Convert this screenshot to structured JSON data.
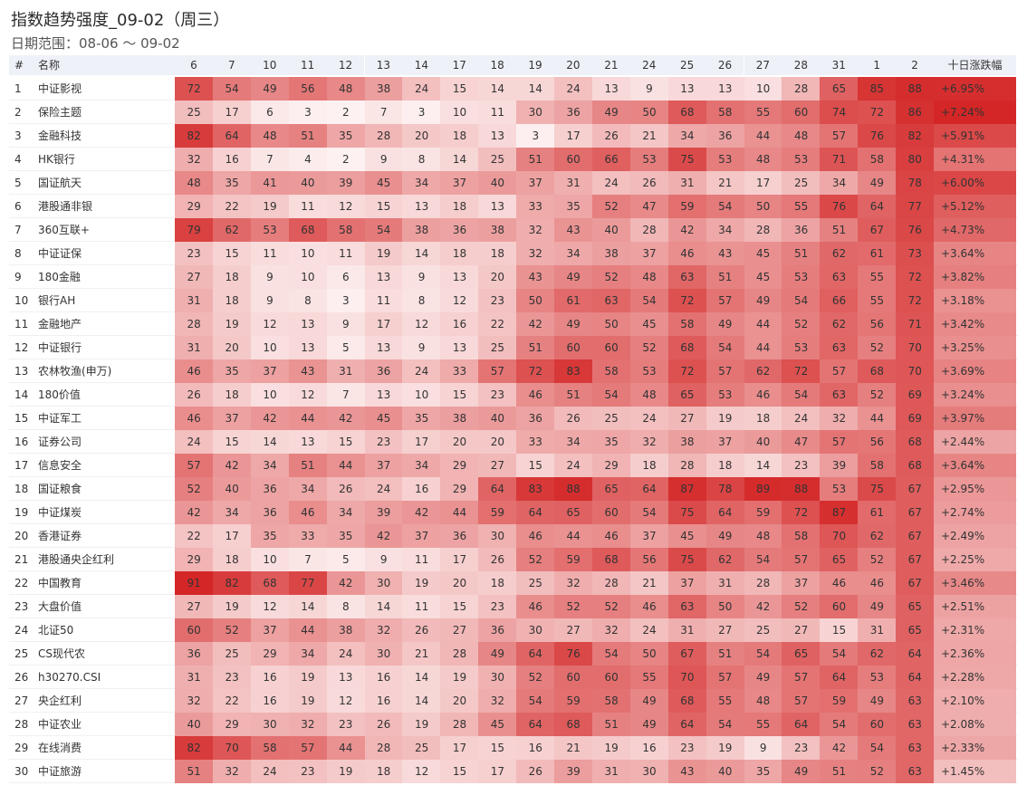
{
  "title": "指数趋势强度_09-02（周三）",
  "subtitle": "日期范围：08-06 ～ 09-02",
  "table": {
    "header": [
      "#",
      "名称",
      "6",
      "7",
      "10",
      "11",
      "12",
      "13",
      "14",
      "17",
      "18",
      "19",
      "20",
      "21",
      "24",
      "25",
      "26",
      "27",
      "28",
      "31",
      "1",
      "2",
      "十日涨跌幅"
    ],
    "colors": {
      "low": "#fdf1f1",
      "high": "#d42626"
    },
    "rows": [
      {
        "rank": 1,
        "name": "中证影视",
        "scores": [
          72,
          54,
          49,
          56,
          48,
          38,
          24,
          15,
          14,
          14,
          24,
          13,
          9,
          13,
          13,
          10,
          28,
          65,
          85,
          88
        ],
        "change": {
          "value": 6.95,
          "label": "+6.95%"
        }
      },
      {
        "rank": 2,
        "name": "保险主题",
        "scores": [
          25,
          17,
          6,
          3,
          2,
          7,
          3,
          10,
          11,
          30,
          36,
          49,
          50,
          68,
          58,
          55,
          60,
          74,
          72,
          86
        ],
        "change": {
          "value": 7.24,
          "label": "+7.24%"
        }
      },
      {
        "rank": 3,
        "name": "金融科技",
        "scores": [
          82,
          64,
          48,
          51,
          35,
          28,
          20,
          18,
          13,
          3,
          17,
          26,
          21,
          34,
          36,
          44,
          48,
          57,
          76,
          82
        ],
        "change": {
          "value": 5.91,
          "label": "+5.91%"
        }
      },
      {
        "rank": 4,
        "name": "HK银行",
        "scores": [
          32,
          16,
          7,
          4,
          2,
          9,
          8,
          14,
          25,
          51,
          60,
          66,
          53,
          75,
          53,
          48,
          53,
          71,
          58,
          80
        ],
        "change": {
          "value": 4.31,
          "label": "+4.31%"
        }
      },
      {
        "rank": 5,
        "name": "国证航天",
        "scores": [
          48,
          35,
          41,
          40,
          39,
          45,
          34,
          37,
          40,
          37,
          31,
          24,
          26,
          31,
          21,
          17,
          25,
          34,
          49,
          78
        ],
        "change": {
          "value": 6.0,
          "label": "+6.00%"
        }
      },
      {
        "rank": 6,
        "name": "港股通非银",
        "scores": [
          29,
          22,
          19,
          11,
          12,
          15,
          13,
          18,
          13,
          33,
          35,
          52,
          47,
          59,
          54,
          50,
          55,
          76,
          64,
          77
        ],
        "change": {
          "value": 5.12,
          "label": "+5.12%"
        }
      },
      {
        "rank": 7,
        "name": "360互联+",
        "scores": [
          79,
          62,
          53,
          68,
          58,
          54,
          38,
          36,
          38,
          32,
          43,
          40,
          28,
          42,
          34,
          28,
          36,
          51,
          67,
          76
        ],
        "change": {
          "value": 4.73,
          "label": "+4.73%"
        }
      },
      {
        "rank": 8,
        "name": "中证证保",
        "scores": [
          23,
          15,
          11,
          10,
          11,
          19,
          14,
          18,
          18,
          32,
          34,
          38,
          37,
          46,
          43,
          45,
          51,
          62,
          61,
          73
        ],
        "change": {
          "value": 3.64,
          "label": "+3.64%"
        }
      },
      {
        "rank": 9,
        "name": "180金融",
        "scores": [
          27,
          18,
          9,
          10,
          6,
          13,
          9,
          13,
          20,
          43,
          49,
          52,
          48,
          63,
          51,
          45,
          53,
          63,
          55,
          72
        ],
        "change": {
          "value": 3.82,
          "label": "+3.82%"
        }
      },
      {
        "rank": 10,
        "name": "银行AH",
        "scores": [
          31,
          18,
          9,
          8,
          3,
          11,
          8,
          12,
          23,
          50,
          61,
          63,
          54,
          72,
          57,
          49,
          54,
          66,
          55,
          72
        ],
        "change": {
          "value": 3.18,
          "label": "+3.18%"
        }
      },
      {
        "rank": 11,
        "name": "金融地产",
        "scores": [
          28,
          19,
          12,
          13,
          9,
          17,
          12,
          16,
          22,
          42,
          49,
          50,
          45,
          58,
          49,
          44,
          52,
          62,
          56,
          71
        ],
        "change": {
          "value": 3.42,
          "label": "+3.42%"
        }
      },
      {
        "rank": 12,
        "name": "中证银行",
        "scores": [
          31,
          20,
          10,
          13,
          5,
          13,
          9,
          13,
          25,
          51,
          60,
          60,
          52,
          68,
          54,
          44,
          53,
          63,
          52,
          70
        ],
        "change": {
          "value": 3.25,
          "label": "+3.25%"
        }
      },
      {
        "rank": 13,
        "name": "农林牧渔(申万)",
        "scores": [
          46,
          35,
          37,
          43,
          31,
          36,
          24,
          33,
          57,
          72,
          83,
          58,
          53,
          72,
          57,
          62,
          72,
          57,
          68,
          70
        ],
        "change": {
          "value": 3.69,
          "label": "+3.69%"
        }
      },
      {
        "rank": 14,
        "name": "180价值",
        "scores": [
          26,
          18,
          10,
          12,
          7,
          13,
          10,
          15,
          23,
          46,
          51,
          54,
          48,
          65,
          53,
          46,
          54,
          63,
          52,
          69
        ],
        "change": {
          "value": 3.24,
          "label": "+3.24%"
        }
      },
      {
        "rank": 15,
        "name": "中证军工",
        "scores": [
          46,
          37,
          42,
          44,
          42,
          45,
          35,
          38,
          40,
          36,
          26,
          25,
          24,
          27,
          19,
          18,
          24,
          32,
          44,
          69
        ],
        "change": {
          "value": 3.97,
          "label": "+3.97%"
        }
      },
      {
        "rank": 16,
        "name": "证券公司",
        "scores": [
          24,
          15,
          14,
          13,
          15,
          23,
          17,
          20,
          20,
          33,
          34,
          35,
          32,
          38,
          37,
          40,
          47,
          57,
          56,
          68
        ],
        "change": {
          "value": 2.44,
          "label": "+2.44%"
        }
      },
      {
        "rank": 17,
        "name": "信息安全",
        "scores": [
          57,
          42,
          34,
          51,
          44,
          37,
          34,
          29,
          27,
          15,
          24,
          29,
          18,
          28,
          18,
          14,
          23,
          39,
          58,
          68
        ],
        "change": {
          "value": 3.64,
          "label": "+3.64%"
        }
      },
      {
        "rank": 18,
        "name": "国证粮食",
        "scores": [
          52,
          40,
          36,
          34,
          26,
          24,
          16,
          29,
          64,
          83,
          88,
          65,
          64,
          87,
          78,
          89,
          88,
          53,
          75,
          67
        ],
        "change": {
          "value": 2.95,
          "label": "+2.95%"
        }
      },
      {
        "rank": 19,
        "name": "中证煤炭",
        "scores": [
          42,
          34,
          36,
          46,
          34,
          39,
          42,
          44,
          59,
          64,
          65,
          60,
          54,
          75,
          64,
          59,
          72,
          87,
          61,
          67
        ],
        "change": {
          "value": 2.74,
          "label": "+2.74%"
        }
      },
      {
        "rank": 20,
        "name": "香港证券",
        "scores": [
          22,
          17,
          35,
          33,
          35,
          42,
          37,
          36,
          30,
          46,
          44,
          46,
          37,
          45,
          49,
          48,
          58,
          70,
          62,
          67
        ],
        "change": {
          "value": 2.49,
          "label": "+2.49%"
        }
      },
      {
        "rank": 21,
        "name": "港股通央企红利",
        "scores": [
          29,
          18,
          10,
          7,
          5,
          9,
          11,
          17,
          26,
          52,
          59,
          68,
          56,
          75,
          62,
          54,
          57,
          65,
          52,
          67
        ],
        "change": {
          "value": 2.25,
          "label": "+2.25%"
        }
      },
      {
        "rank": 22,
        "name": "中国教育",
        "scores": [
          91,
          82,
          68,
          77,
          42,
          30,
          19,
          20,
          18,
          25,
          32,
          28,
          21,
          37,
          31,
          28,
          37,
          46,
          46,
          67
        ],
        "change": {
          "value": 3.46,
          "label": "+3.46%"
        }
      },
      {
        "rank": 23,
        "name": "大盘价值",
        "scores": [
          27,
          19,
          12,
          14,
          8,
          14,
          11,
          15,
          23,
          46,
          52,
          52,
          46,
          63,
          50,
          42,
          52,
          60,
          49,
          65
        ],
        "change": {
          "value": 2.51,
          "label": "+2.51%"
        }
      },
      {
        "rank": 24,
        "name": "北证50",
        "scores": [
          60,
          52,
          37,
          44,
          38,
          32,
          26,
          27,
          36,
          30,
          27,
          32,
          24,
          31,
          27,
          25,
          27,
          15,
          31,
          65
        ],
        "change": {
          "value": 2.31,
          "label": "+2.31%"
        }
      },
      {
        "rank": 25,
        "name": "CS现代农",
        "scores": [
          36,
          25,
          29,
          34,
          24,
          30,
          21,
          28,
          49,
          64,
          76,
          54,
          50,
          67,
          51,
          54,
          65,
          54,
          62,
          64
        ],
        "change": {
          "value": 2.36,
          "label": "+2.36%"
        }
      },
      {
        "rank": 26,
        "name": "h30270.CSI",
        "scores": [
          31,
          23,
          16,
          19,
          13,
          16,
          14,
          19,
          30,
          52,
          60,
          60,
          55,
          70,
          57,
          49,
          57,
          64,
          53,
          64
        ],
        "change": {
          "value": 2.28,
          "label": "+2.28%"
        }
      },
      {
        "rank": 27,
        "name": "央企红利",
        "scores": [
          32,
          22,
          16,
          19,
          12,
          16,
          14,
          20,
          32,
          54,
          59,
          58,
          49,
          68,
          55,
          48,
          57,
          59,
          49,
          63
        ],
        "change": {
          "value": 2.1,
          "label": "+2.10%"
        }
      },
      {
        "rank": 28,
        "name": "中证农业",
        "scores": [
          40,
          29,
          30,
          32,
          23,
          26,
          19,
          28,
          45,
          64,
          68,
          51,
          49,
          64,
          54,
          55,
          64,
          54,
          60,
          63
        ],
        "change": {
          "value": 2.08,
          "label": "+2.08%"
        }
      },
      {
        "rank": 29,
        "name": "在线消费",
        "scores": [
          82,
          70,
          58,
          57,
          44,
          28,
          25,
          17,
          15,
          16,
          21,
          19,
          16,
          23,
          19,
          9,
          23,
          42,
          54,
          63
        ],
        "change": {
          "value": 2.33,
          "label": "+2.33%"
        }
      },
      {
        "rank": 30,
        "name": "中证旅游",
        "scores": [
          51,
          32,
          24,
          23,
          19,
          18,
          12,
          15,
          17,
          26,
          39,
          31,
          30,
          43,
          40,
          35,
          49,
          51,
          52,
          63
        ],
        "change": {
          "value": 1.45,
          "label": "+1.45%"
        }
      }
    ]
  }
}
